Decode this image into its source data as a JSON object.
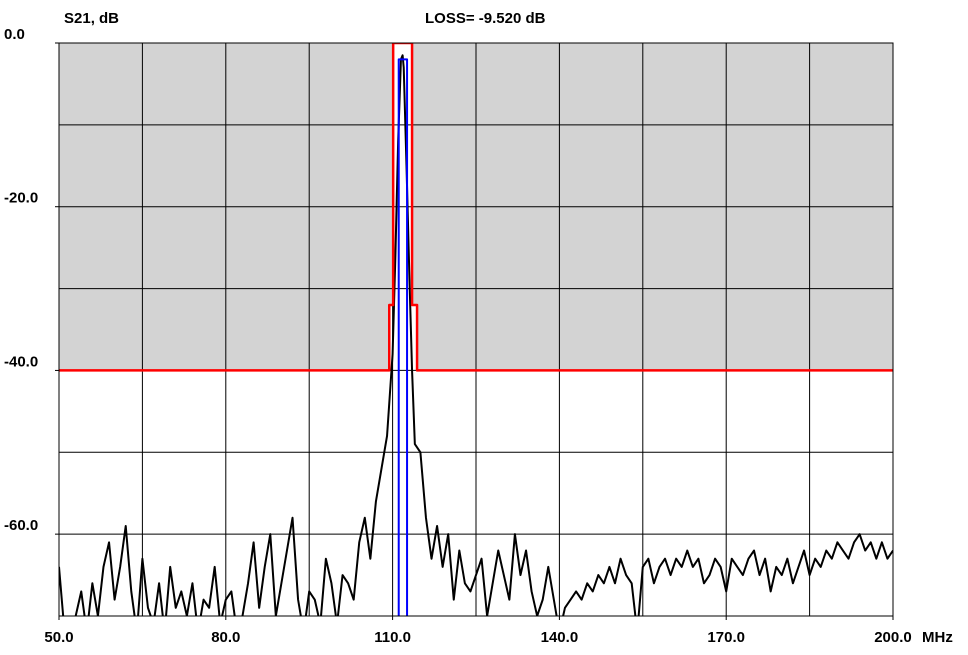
{
  "chart_data": {
    "type": "line",
    "title": "S21, dB",
    "annotation": "LOSS=  -9.520 dB",
    "x_unit": "MHz",
    "xlim": [
      50,
      200
    ],
    "ylim": [
      -70,
      0
    ],
    "xticks": [
      {
        "value": 50,
        "label": "50.0"
      },
      {
        "value": 80,
        "label": "80.0"
      },
      {
        "value": 110,
        "label": "110.0"
      },
      {
        "value": 140,
        "label": "140.0"
      },
      {
        "value": 170,
        "label": "170.0"
      },
      {
        "value": 200,
        "label": "200.0"
      }
    ],
    "yticks": [
      {
        "value": 0,
        "label": "0.0"
      },
      {
        "value": -20,
        "label": "-20.0"
      },
      {
        "value": -40,
        "label": "-40.0"
      },
      {
        "value": -60,
        "label": "-60.0"
      }
    ],
    "x_grid": [
      50,
      65,
      80,
      95,
      110,
      125,
      140,
      155,
      170,
      185,
      200
    ],
    "y_grid": [
      0,
      -10,
      -20,
      -30,
      -40,
      -50,
      -60,
      -70
    ],
    "mask_fill": "#d3d3d3",
    "series": [
      {
        "name": "S21",
        "color": "#000000",
        "x": [
          50,
          51,
          52,
          53,
          54,
          55,
          56,
          57,
          58,
          59,
          60,
          61,
          62,
          63,
          64,
          65,
          66,
          67,
          68,
          69,
          70,
          71,
          72,
          73,
          74,
          75,
          76,
          77,
          78,
          79,
          80,
          81,
          82,
          83,
          84,
          85,
          86,
          87,
          88,
          89,
          90,
          91,
          92,
          93,
          94,
          95,
          96,
          97,
          98,
          99,
          100,
          101,
          102,
          103,
          104,
          105,
          106,
          107,
          108,
          109,
          110,
          110.5,
          111,
          111.5,
          111.8,
          112,
          112.5,
          113,
          113.5,
          114,
          115,
          116,
          117,
          118,
          119,
          120,
          121,
          122,
          123,
          124,
          125,
          126,
          127,
          128,
          129,
          130,
          131,
          132,
          133,
          134,
          135,
          136,
          137,
          138,
          139,
          140,
          141,
          142,
          143,
          144,
          145,
          146,
          147,
          148,
          149,
          150,
          151,
          152,
          153,
          154,
          155,
          156,
          157,
          158,
          159,
          160,
          161,
          162,
          163,
          164,
          165,
          166,
          167,
          168,
          169,
          170,
          171,
          172,
          173,
          174,
          175,
          176,
          177,
          178,
          179,
          180,
          181,
          182,
          183,
          184,
          185,
          186,
          187,
          188,
          189,
          190,
          191,
          192,
          193,
          194,
          195,
          196,
          197,
          198,
          199,
          200
        ],
        "values": [
          -64,
          -72,
          -75,
          -70,
          -67,
          -72,
          -66,
          -70,
          -64,
          -61,
          -68,
          -64,
          -59,
          -67,
          -72,
          -63,
          -69,
          -71,
          -66,
          -72,
          -64,
          -69,
          -67,
          -70,
          -66,
          -72,
          -68,
          -69,
          -64,
          -71,
          -68,
          -67,
          -72,
          -70,
          -66,
          -61,
          -69,
          -64,
          -60,
          -70,
          -66,
          -62,
          -58,
          -68,
          -72,
          -67,
          -68,
          -71,
          -63,
          -66,
          -71,
          -65,
          -66,
          -68,
          -61,
          -58,
          -63,
          -56,
          -52,
          -48,
          -38,
          -26,
          -12,
          -2,
          -1.5,
          -3,
          -15,
          -28,
          -40,
          -49,
          -50,
          -58,
          -63,
          -59,
          -64,
          -60,
          -68,
          -62,
          -66,
          -67,
          -65,
          -63,
          -70,
          -66,
          -62,
          -65,
          -68,
          -60,
          -65,
          -62,
          -67,
          -70,
          -68,
          -64,
          -68,
          -72,
          -69,
          -68,
          -67,
          -68,
          -66,
          -67,
          -65,
          -66,
          -64,
          -66,
          -63,
          -65,
          -66,
          -72,
          -64,
          -63,
          -66,
          -64,
          -63,
          -65,
          -63,
          -64,
          -62,
          -64,
          -63,
          -66,
          -65,
          -63,
          -64,
          -67,
          -63,
          -64,
          -65,
          -63,
          -62,
          -65,
          -63,
          -67,
          -64,
          -65,
          -63,
          -66,
          -64,
          -62,
          -65,
          -63,
          -64,
          -62,
          -63,
          -61,
          -62,
          -63,
          -61,
          -60,
          -62,
          -61,
          -63,
          -61,
          -63,
          -62
        ]
      },
      {
        "name": "mask",
        "color": "#ff0000",
        "x": [
          50,
          109.4,
          109.4,
          110.1,
          110.1,
          113.5,
          113.5,
          114.4,
          114.4,
          200
        ],
        "values": [
          -40,
          -40,
          -32,
          -32,
          0,
          0,
          -32,
          -32,
          -40,
          -40
        ]
      },
      {
        "name": "passband",
        "color": "#0000ff",
        "x": [
          111.1,
          111.1,
          112.6,
          112.6
        ],
        "values": [
          -70,
          -2,
          -2,
          -70
        ]
      }
    ]
  }
}
